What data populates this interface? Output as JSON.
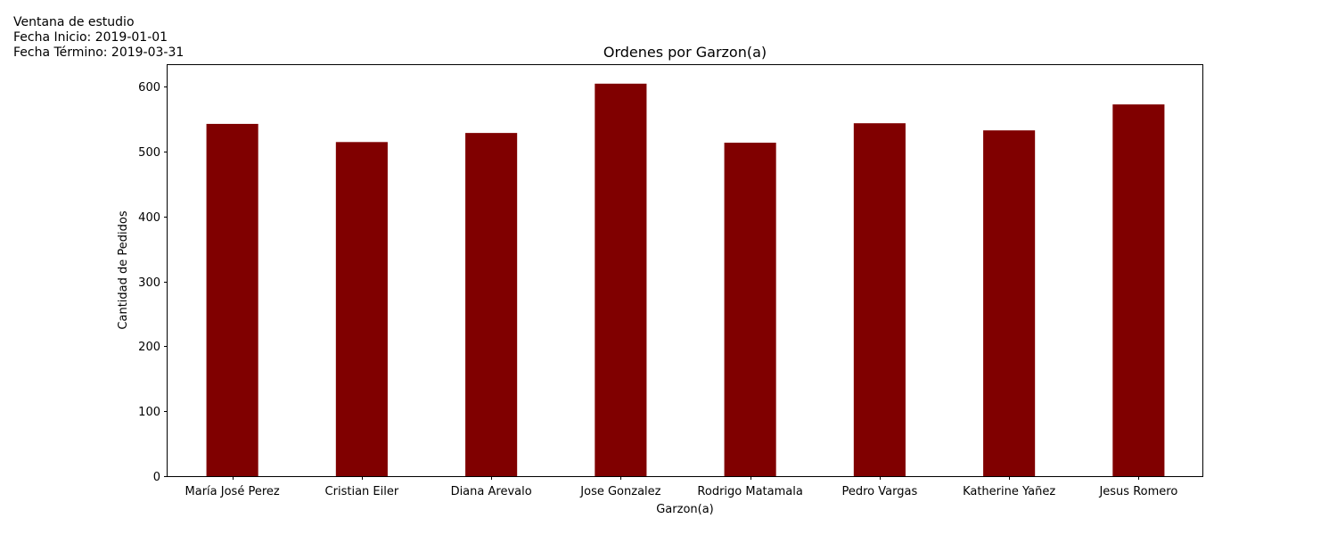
{
  "study_window": {
    "heading": "Ventana de estudio",
    "start_label": "Fecha Inicio: 2019-01-01",
    "end_label": "Fecha Término: 2019-03-31"
  },
  "chart_data": {
    "type": "bar",
    "title": "Ordenes por Garzon(a)",
    "xlabel": "Garzon(a)",
    "ylabel": "Cantidad de Pedidos",
    "categories": [
      "María José Perez",
      "Cristian Eiler",
      "Diana Arevalo",
      "Jose Gonzalez",
      "Rodrigo Matamala",
      "Pedro Vargas",
      "Katherine Yañez",
      "Jesus Romero"
    ],
    "values": [
      543,
      515,
      529,
      605,
      514,
      544,
      533,
      573
    ],
    "ylim": [
      0,
      635
    ],
    "yticks": [
      0,
      100,
      200,
      300,
      400,
      500,
      600
    ],
    "bar_color": "#800000",
    "grid": false,
    "legend": false
  }
}
